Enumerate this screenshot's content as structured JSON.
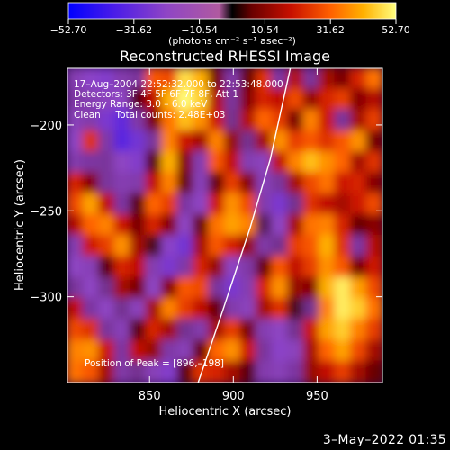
{
  "chart_data": {
    "type": "heatmap",
    "title": "Reconstructed RHESSI Image",
    "xlabel": "Heliocentric X (arcsec)",
    "ylabel": "Heliocentric Y (arcsec)",
    "xlim": [
      801,
      989
    ],
    "ylim": [
      -350,
      -167
    ],
    "x_ticks": [
      850,
      900,
      950
    ],
    "y_ticks": [
      -300,
      -250,
      -200
    ],
    "colorbar": {
      "ticks": [
        -52.7,
        -31.62,
        -10.54,
        10.54,
        31.62,
        52.7
      ],
      "tick_labels": [
        "−52.70",
        "−31.62",
        "−10.54",
        "10.54",
        "31.62",
        "52.70"
      ],
      "range": [
        -52.7,
        52.7
      ],
      "unit_label": "(photons cm⁻² s⁻¹ asec⁻²)"
    },
    "annotations": [
      "17–Aug–2004 22:52:32.000 to 22:53:48.000",
      "Detectors: 3F 4F 5F 6F 7F 8F, Att 1",
      "Energy Range: 3.0 – 6.0 keV",
      "Clean     Total counts: 2.48E+03",
      "Position of Peak = [896,–198]"
    ],
    "limb_curve": [
      [
        879,
        -350
      ],
      [
        893,
        -310
      ],
      [
        910,
        -260
      ],
      [
        922,
        -220
      ],
      [
        934,
        -167
      ]
    ],
    "intensity_grid": [
      [
        -14,
        -22,
        -24,
        -12,
        -6,
        30,
        28,
        48,
        42,
        8,
        -10,
        6,
        24,
        -8,
        16,
        -6,
        14,
        8,
        22,
        34
      ],
      [
        -10,
        -14,
        -18,
        -20,
        4,
        18,
        42,
        52,
        46,
        16,
        -6,
        10,
        22,
        18,
        28,
        12,
        22,
        26,
        10,
        16
      ],
      [
        -16,
        -12,
        -26,
        -32,
        -10,
        8,
        34,
        44,
        38,
        20,
        -4,
        16,
        32,
        26,
        8,
        36,
        20,
        -6,
        14,
        26
      ],
      [
        -20,
        24,
        -10,
        -34,
        -28,
        -6,
        36,
        20,
        14,
        36,
        12,
        -4,
        14,
        38,
        26,
        30,
        24,
        30,
        38,
        8
      ],
      [
        -12,
        -8,
        -6,
        -20,
        -24,
        4,
        42,
        10,
        -14,
        30,
        18,
        -14,
        -18,
        18,
        36,
        44,
        38,
        32,
        14,
        24
      ],
      [
        22,
        10,
        -6,
        -14,
        -12,
        18,
        36,
        6,
        -16,
        6,
        26,
        10,
        -16,
        -6,
        14,
        28,
        34,
        20,
        22,
        10
      ],
      [
        28,
        40,
        18,
        -8,
        4,
        32,
        26,
        -8,
        -20,
        20,
        38,
        28,
        -12,
        -26,
        -4,
        24,
        18,
        14,
        20,
        28
      ],
      [
        16,
        32,
        36,
        20,
        8,
        22,
        10,
        -20,
        6,
        34,
        40,
        36,
        -2,
        -20,
        14,
        34,
        36,
        22,
        6,
        10
      ],
      [
        -14,
        20,
        26,
        38,
        14,
        2,
        -22,
        -28,
        14,
        30,
        22,
        12,
        -10,
        -4,
        26,
        30,
        42,
        24,
        -8,
        16
      ],
      [
        -20,
        -16,
        4,
        22,
        18,
        -14,
        -26,
        -10,
        22,
        12,
        -20,
        -10,
        6,
        30,
        18,
        26,
        38,
        30,
        8,
        20
      ],
      [
        -6,
        -20,
        -4,
        14,
        8,
        -20,
        10,
        30,
        28,
        -6,
        -26,
        -14,
        22,
        38,
        12,
        10,
        42,
        50,
        40,
        28
      ],
      [
        18,
        -8,
        -20,
        -4,
        -18,
        14,
        36,
        26,
        18,
        6,
        -12,
        -18,
        14,
        24,
        2,
        -4,
        36,
        50,
        46,
        34
      ],
      [
        28,
        24,
        -6,
        -16,
        4,
        22,
        14,
        -4,
        -12,
        14,
        26,
        8,
        -14,
        -20,
        -4,
        20,
        40,
        46,
        36,
        26
      ],
      [
        36,
        38,
        20,
        -8,
        18,
        12,
        -10,
        -16,
        6,
        32,
        38,
        20,
        -6,
        -22,
        -18,
        14,
        32,
        40,
        28,
        14
      ],
      [
        34,
        30,
        14,
        -10,
        -4,
        -16,
        -24,
        4,
        24,
        22,
        14,
        4,
        -12,
        -16,
        -8,
        12,
        18,
        26,
        14,
        6
      ]
    ]
  },
  "timestamp": "3–May–2022 01:35"
}
